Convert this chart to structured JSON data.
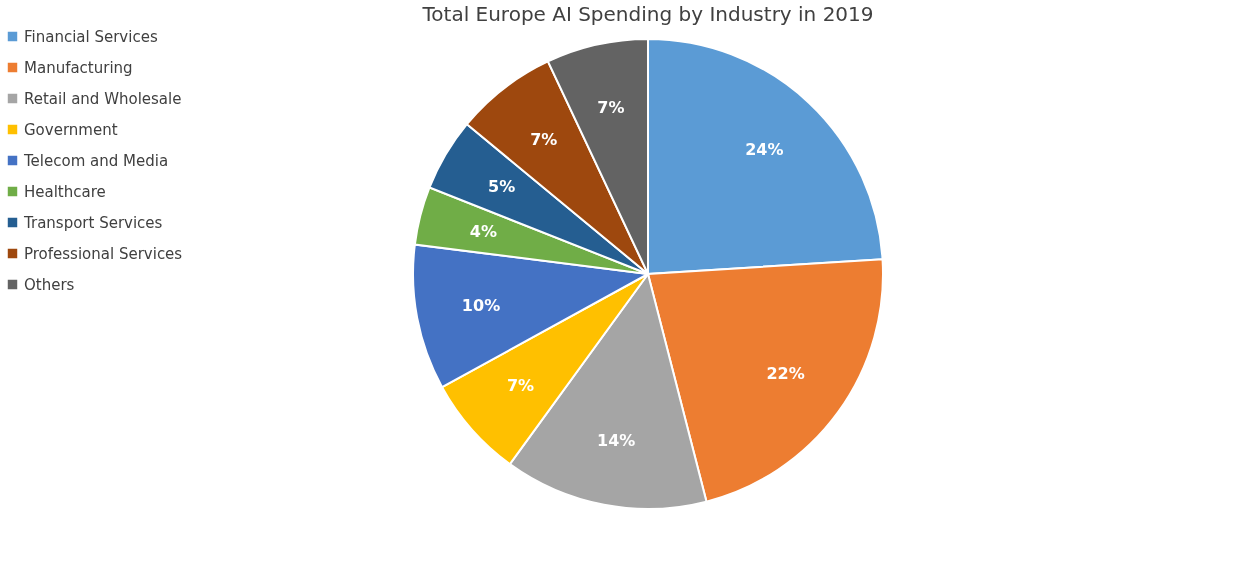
{
  "chart_data": {
    "type": "pie",
    "title": "Total Europe AI Spending by Industry in 2019",
    "categories": [
      "Financial Services",
      "Manufacturing",
      "Retail and Wholesale",
      "Government",
      "Telecom and Media",
      "Healthcare",
      "Transport Services",
      "Professional Services",
      "Others"
    ],
    "values": [
      24,
      22,
      14,
      7,
      10,
      4,
      5,
      7,
      7
    ],
    "colors": [
      "#5b9bd5",
      "#ed7d31",
      "#a5a5a5",
      "#ffc000",
      "#4472c4",
      "#70ad47",
      "#255e91",
      "#9e480e",
      "#636363"
    ],
    "value_labels": [
      "24%",
      "22%",
      "14%",
      "7%",
      "10%",
      "4%",
      "5%",
      "7%",
      "7%"
    ],
    "legend": "left"
  }
}
